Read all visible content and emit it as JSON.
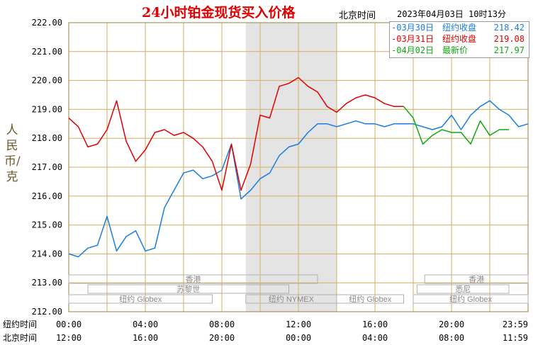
{
  "header": {
    "title": "24小时铂金现货买入价格",
    "timezone": "北京时间",
    "timestamp": "2023年04月03日 10时13分"
  },
  "y_axis_label": "人民币/克",
  "legend": [
    {
      "date": "-03月30日",
      "label": "纽约收盘",
      "value": "218.42",
      "color": "#1a7de0"
    },
    {
      "date": "-03月31日",
      "label": "纽约收盘",
      "value": "219.08",
      "color": "#e00000"
    },
    {
      "date": "-04月02日",
      "label": "最新价",
      "value": "217.97",
      "color": "#12a812"
    }
  ],
  "axis_row_labels": [
    "纽约时间",
    "北京时间"
  ],
  "market_sessions": [
    {
      "name": "香港",
      "row": 0
    },
    {
      "name": "苏黎世",
      "row": 1
    },
    {
      "name": "纽约 Globex",
      "row": 2
    },
    {
      "name": "纽约 NYMEX",
      "row": 2
    },
    {
      "name": "纽约 Globex",
      "row": 2
    },
    {
      "name": "香港",
      "row": 0
    },
    {
      "name": "悉尼",
      "row": 1
    },
    {
      "name": "纽约 Globex",
      "row": 2
    }
  ],
  "chart_data": {
    "type": "line",
    "ylim": [
      212,
      222
    ],
    "y_ticks": [
      "222.00",
      "221.00",
      "220.00",
      "219.00",
      "218.00",
      "217.00",
      "216.00",
      "215.00",
      "214.00",
      "213.00",
      "212.00"
    ],
    "x_ticks_ny": [
      "00:00",
      "04:00",
      "08:00",
      "12:00",
      "16:00",
      "20:00",
      "23:59"
    ],
    "x_ticks_bj": [
      "12:00",
      "16:00",
      "20:00",
      "00:00",
      "04:00",
      "08:00",
      "11:59"
    ],
    "x_unit": "hours since 00:00 New York time",
    "xlim": [
      0,
      24
    ],
    "shaded_region": [
      9.25,
      14.0
    ],
    "grid": true,
    "legend_position": "top-right",
    "series": [
      {
        "name": "03月30日",
        "color": "#1a7de0",
        "x": [
          0,
          0.5,
          1,
          1.5,
          2,
          2.5,
          3,
          3.5,
          4,
          4.5,
          5,
          5.5,
          6,
          6.5,
          7,
          7.5,
          8,
          8.5,
          9,
          9.5,
          10,
          10.5,
          11,
          11.5,
          12,
          12.5,
          13,
          13.5,
          14,
          14.5,
          15,
          15.5,
          16,
          16.5,
          17,
          17.5,
          18,
          18.5,
          19,
          19.5,
          20,
          20.5,
          21,
          21.5,
          22,
          22.5,
          23,
          23.5,
          24
        ],
        "values": [
          214.0,
          213.9,
          214.2,
          214.3,
          215.3,
          214.1,
          214.6,
          214.8,
          214.1,
          214.2,
          215.6,
          216.2,
          216.8,
          216.9,
          216.6,
          216.7,
          216.9,
          217.8,
          215.9,
          216.2,
          216.6,
          216.8,
          217.4,
          217.7,
          217.8,
          218.2,
          218.5,
          218.5,
          218.4,
          218.5,
          218.6,
          218.5,
          218.5,
          218.4,
          218.5,
          218.5,
          218.5,
          218.4,
          218.3,
          218.4,
          218.8,
          218.3,
          218.8,
          219.1,
          219.3,
          219.0,
          218.8,
          218.4,
          218.5
        ]
      },
      {
        "name": "03月31日",
        "color": "#e00000",
        "x": [
          0,
          0.5,
          1,
          1.5,
          2,
          2.5,
          3,
          3.5,
          4,
          4.5,
          5,
          5.5,
          6,
          6.5,
          7,
          7.5,
          8,
          8.5,
          9,
          9.5,
          10,
          10.5,
          11,
          11.5,
          12,
          12.5,
          13,
          13.5,
          14,
          14.5,
          15,
          15.5,
          16,
          16.5,
          17,
          17.5
        ],
        "values": [
          218.7,
          218.4,
          217.7,
          217.8,
          218.3,
          219.3,
          217.9,
          217.2,
          217.6,
          218.2,
          218.3,
          218.1,
          218.2,
          218.0,
          217.7,
          217.2,
          216.2,
          217.8,
          216.2,
          217.1,
          218.8,
          218.7,
          219.8,
          219.9,
          220.1,
          219.8,
          219.6,
          219.1,
          218.9,
          219.2,
          219.4,
          219.5,
          219.4,
          219.2,
          219.1,
          219.1
        ]
      },
      {
        "name": "04月02日",
        "color": "#12a812",
        "x": [
          17.5,
          18,
          18.5,
          19,
          19.5,
          20,
          20.5,
          21,
          21.5,
          22,
          22.5,
          23
        ],
        "values": [
          219.1,
          218.7,
          217.8,
          218.1,
          218.3,
          218.2,
          218.2,
          217.8,
          218.6,
          218.1,
          218.3,
          218.3
        ]
      }
    ]
  }
}
